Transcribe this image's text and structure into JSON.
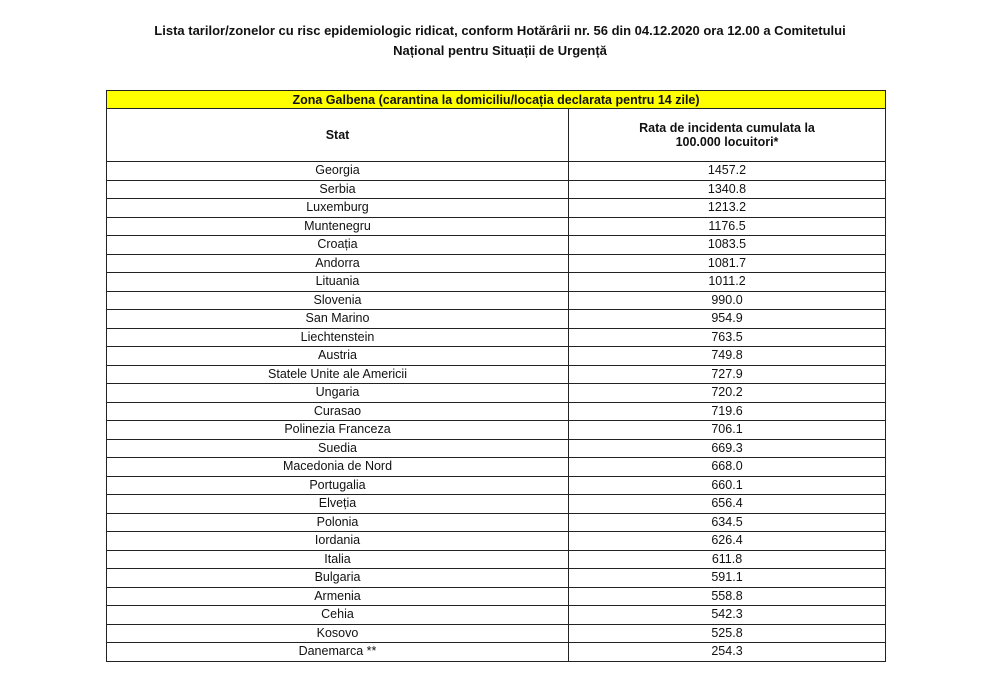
{
  "title_line1": "Lista tarilor/zonelor cu risc epidemiologic ridicat, conform Hotărârii nr. 56 din 04.12.2020 ora 12.00 a Comitetului",
  "title_line2": "Național pentru Situații de Urgență",
  "table": {
    "zone_label": "Zona Galbena (carantina la domiciliu/locația declarata pentru 14 zile)",
    "zone_color": "#ffff00",
    "col_stat": "Stat",
    "col_rate_line1": "Rata de incidenta cumulata la",
    "col_rate_line2": "100.000 locuitori*",
    "rows": [
      {
        "stat": "Georgia",
        "rate": "1457.2"
      },
      {
        "stat": "Serbia",
        "rate": "1340.8"
      },
      {
        "stat": "Luxemburg",
        "rate": "1213.2"
      },
      {
        "stat": "Muntenegru",
        "rate": "1176.5"
      },
      {
        "stat": "Croația",
        "rate": "1083.5"
      },
      {
        "stat": "Andorra",
        "rate": "1081.7"
      },
      {
        "stat": "Lituania",
        "rate": "1011.2"
      },
      {
        "stat": "Slovenia",
        "rate": "990.0"
      },
      {
        "stat": "San Marino",
        "rate": "954.9"
      },
      {
        "stat": "Liechtenstein",
        "rate": "763.5"
      },
      {
        "stat": "Austria",
        "rate": "749.8"
      },
      {
        "stat": "Statele Unite ale Americii",
        "rate": "727.9"
      },
      {
        "stat": "Ungaria",
        "rate": "720.2"
      },
      {
        "stat": "Curasao",
        "rate": "719.6"
      },
      {
        "stat": "Polinezia Franceza",
        "rate": "706.1"
      },
      {
        "stat": "Suedia",
        "rate": "669.3"
      },
      {
        "stat": "Macedonia de Nord",
        "rate": "668.0"
      },
      {
        "stat": "Portugalia",
        "rate": "660.1"
      },
      {
        "stat": "Elveția",
        "rate": "656.4"
      },
      {
        "stat": "Polonia",
        "rate": "634.5"
      },
      {
        "stat": "Iordania",
        "rate": "626.4"
      },
      {
        "stat": "Italia",
        "rate": "611.8"
      },
      {
        "stat": "Bulgaria",
        "rate": "591.1"
      },
      {
        "stat": "Armenia",
        "rate": "558.8"
      },
      {
        "stat": "Cehia",
        "rate": "542.3"
      },
      {
        "stat": "Kosovo",
        "rate": "525.8"
      },
      {
        "stat": "Danemarca **",
        "rate": "254.3"
      }
    ]
  }
}
